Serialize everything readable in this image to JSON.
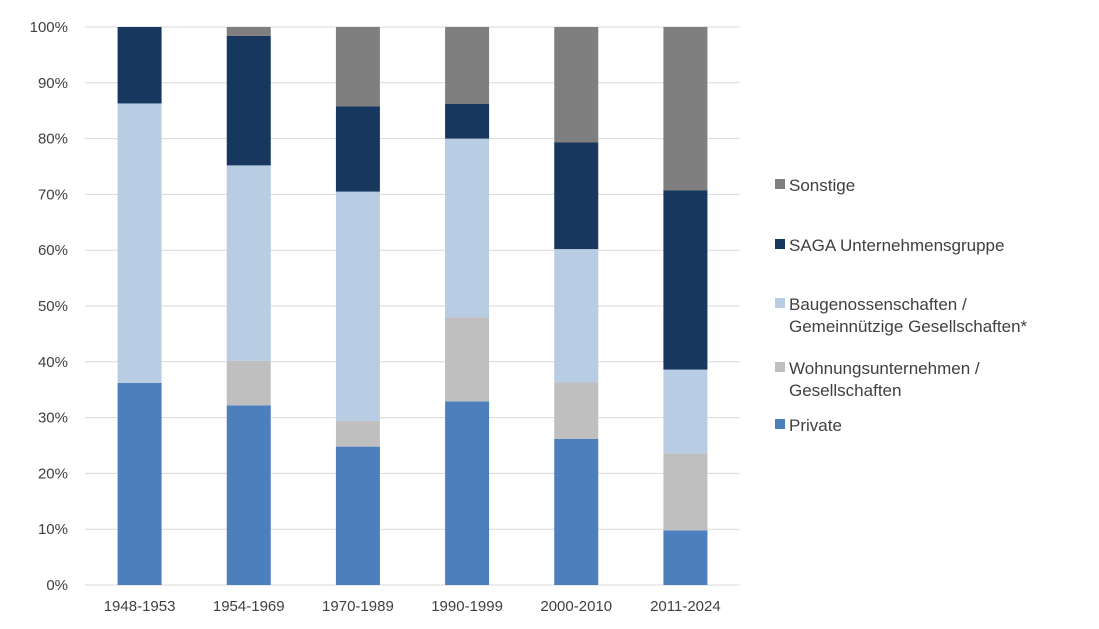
{
  "chart_data": {
    "type": "bar",
    "stacked": true,
    "categories": [
      "1948-1953",
      "1954-1969",
      "1970-1989",
      "1990-1999",
      "2000-2010",
      "2011-2024"
    ],
    "series": [
      {
        "name": "Private",
        "color": "#4e7fbd",
        "values": [
          36.2,
          32.2,
          24.8,
          32.9,
          26.2,
          9.8
        ]
      },
      {
        "name": "Wohnungsunternehmen / Gesellschaften",
        "legend_lines": [
          "Wohnungsunternehmen /",
          "Gesellschaften"
        ],
        "color": "#bfbfbf",
        "values": [
          0,
          8.0,
          4.6,
          15.1,
          10.1,
          13.8
        ]
      },
      {
        "name": "Baugenossenschaften / Gemeinnützige Gesellschaften*",
        "legend_lines": [
          "Baugenossenschaften /",
          "Gemeinnützige Gesellschaften*"
        ],
        "color": "#b8cce4",
        "values": [
          50.1,
          35.0,
          41.1,
          32.0,
          23.9,
          15.0
        ]
      },
      {
        "name": "SAGA Unternehmensgruppe",
        "color": "#17375e",
        "values": [
          13.7,
          23.2,
          15.3,
          6.2,
          19.1,
          32.1
        ]
      },
      {
        "name": "Sonstige",
        "color": "#7f7f7f",
        "values": [
          0,
          1.6,
          14.2,
          13.8,
          20.7,
          29.3
        ]
      }
    ],
    "legend_order": [
      "Sonstige",
      "SAGA Unternehmensgruppe",
      "Baugenossenschaften / Gemeinnützige Gesellschaften*",
      "Wohnungsunternehmen / Gesellschaften",
      "Private"
    ],
    "y_ticks": [
      "0%",
      "10%",
      "20%",
      "30%",
      "40%",
      "50%",
      "60%",
      "70%",
      "80%",
      "90%",
      "100%"
    ],
    "ylim": [
      0,
      100
    ],
    "grid": true,
    "legend_position": "right",
    "title": "",
    "xlabel": "",
    "ylabel": ""
  }
}
